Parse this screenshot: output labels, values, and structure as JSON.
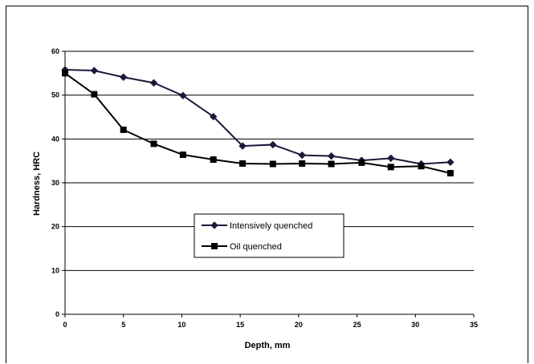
{
  "chart_data": {
    "type": "line",
    "xlabel": "Depth, mm",
    "ylabel": "Hardness, HRC",
    "xlim": [
      0,
      35
    ],
    "ylim": [
      0,
      60
    ],
    "xticks": [
      0,
      5,
      10,
      15,
      20,
      25,
      30,
      35
    ],
    "yticks": [
      0,
      10,
      20,
      30,
      40,
      50,
      60
    ],
    "grid": "horizontal",
    "legend": "center-left, inside plot",
    "series": [
      {
        "name": "Intensively quenched",
        "marker": "diamond",
        "color": "#1a1a3a",
        "x": [
          0,
          2.5,
          5,
          7.6,
          10.1,
          12.7,
          15.2,
          17.8,
          20.3,
          22.8,
          25.4,
          27.9,
          30.5,
          33
        ],
        "y": [
          55.8,
          55.6,
          54.1,
          52.8,
          49.9,
          45.1,
          38.4,
          38.7,
          36.3,
          36.1,
          35.1,
          35.6,
          34.3,
          34.7
        ]
      },
      {
        "name": "Oil quenched",
        "marker": "square",
        "color": "#000000",
        "x": [
          0,
          2.5,
          5,
          7.6,
          10.1,
          12.7,
          15.2,
          17.8,
          20.3,
          22.8,
          25.4,
          27.9,
          30.5,
          33
        ],
        "y": [
          55,
          50.2,
          42.1,
          38.9,
          36.4,
          35.3,
          34.4,
          34.3,
          34.4,
          34.3,
          34.6,
          33.6,
          33.8,
          32.2
        ]
      }
    ]
  }
}
